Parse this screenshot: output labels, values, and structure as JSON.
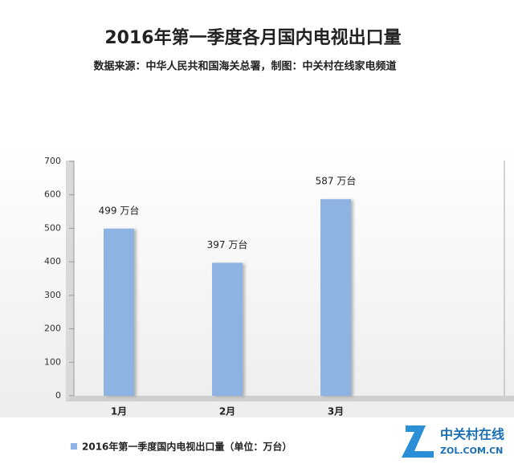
{
  "chart_data": {
    "type": "bar",
    "title": "2016年第一季度各月国内电视出口量",
    "subtitle": "数据来源：中华人民共和国海关总署，制图：中关村在线家电频道",
    "categories": [
      "1月",
      "2月",
      "3月"
    ],
    "series": [
      {
        "name": "2016年第一季度国内电视出口量（单位：万台）",
        "color": "#8db3e2",
        "values": [
          499,
          397,
          587
        ],
        "value_labels": [
          "499 万台",
          "397 万台",
          "587 万台"
        ]
      }
    ],
    "ylim": [
      0,
      700
    ],
    "yticks": [
      0,
      100,
      200,
      300,
      400,
      500,
      600,
      700
    ],
    "grid": false,
    "watermark": {
      "brand": "中关村在线",
      "site": "ZOL.COM.CN"
    }
  }
}
